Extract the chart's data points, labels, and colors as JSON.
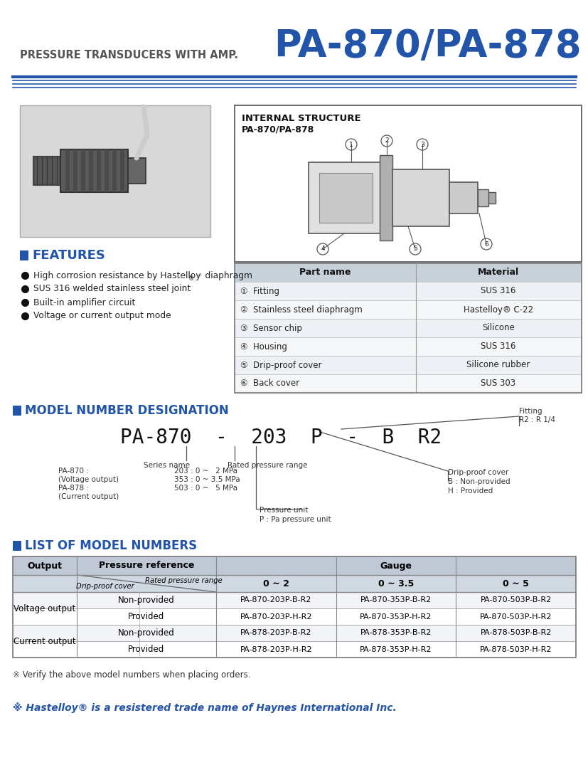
{
  "title_left": "PRESSURE TRANSDUCERS WITH AMP.",
  "title_right": "PA-870/PA-878",
  "blue_color": "#2255aa",
  "title_left_color": "#555555",
  "section_features": "FEATURES",
  "features_bullets": [
    "High corrosion resistance by Hastelloy® ·· diaphragm",
    "SUS 316 welded stainless steel joint",
    "Built-in amplifier circuit",
    "Voltage or current output mode"
  ],
  "internal_structure_title1": "INTERNAL STRUCTURE",
  "internal_structure_title2": "PA-870/PA-878",
  "parts_table_header": [
    "Part name",
    "Material"
  ],
  "parts_table_rows": [
    [
      "①  Fitting",
      "SUS 316"
    ],
    [
      "②  Stainless steel diaphragm",
      "Hastelloy® C-22"
    ],
    [
      "③  Sensor chip",
      "Silicone"
    ],
    [
      "④  Housing",
      "SUS 316"
    ],
    [
      "⑤  Drip-proof cover",
      "Silicone rubber"
    ],
    [
      "⑥  Back cover",
      "SUS 303"
    ]
  ],
  "section_model": "MODEL NUMBER DESIGNATION",
  "section_list": "LIST OF MODEL NUMBERS",
  "table_data": [
    [
      "Voltage output",
      "Non-provided",
      "PA-870-203P-B-R2",
      "PA-870-353P-B-R2",
      "PA-870-503P-B-R2"
    ],
    [
      "",
      "Provided",
      "PA-870-203P-H-R2",
      "PA-870-353P-H-R2",
      "PA-870-503P-H-R2"
    ],
    [
      "Current output",
      "Non-provided",
      "PA-878-203P-B-R2",
      "PA-878-353P-B-R2",
      "PA-878-503P-B-R2"
    ],
    [
      "",
      "Provided",
      "PA-878-203P-H-R2",
      "PA-878-353P-H-R2",
      "PA-878-503P-H-R2"
    ]
  ],
  "footnote1": "※ Verify the above model numbers when placing orders.",
  "footnote2": "※ Hastelloy® is a resistered trade name of Haynes International Inc.",
  "bg_color": "#ffffff"
}
